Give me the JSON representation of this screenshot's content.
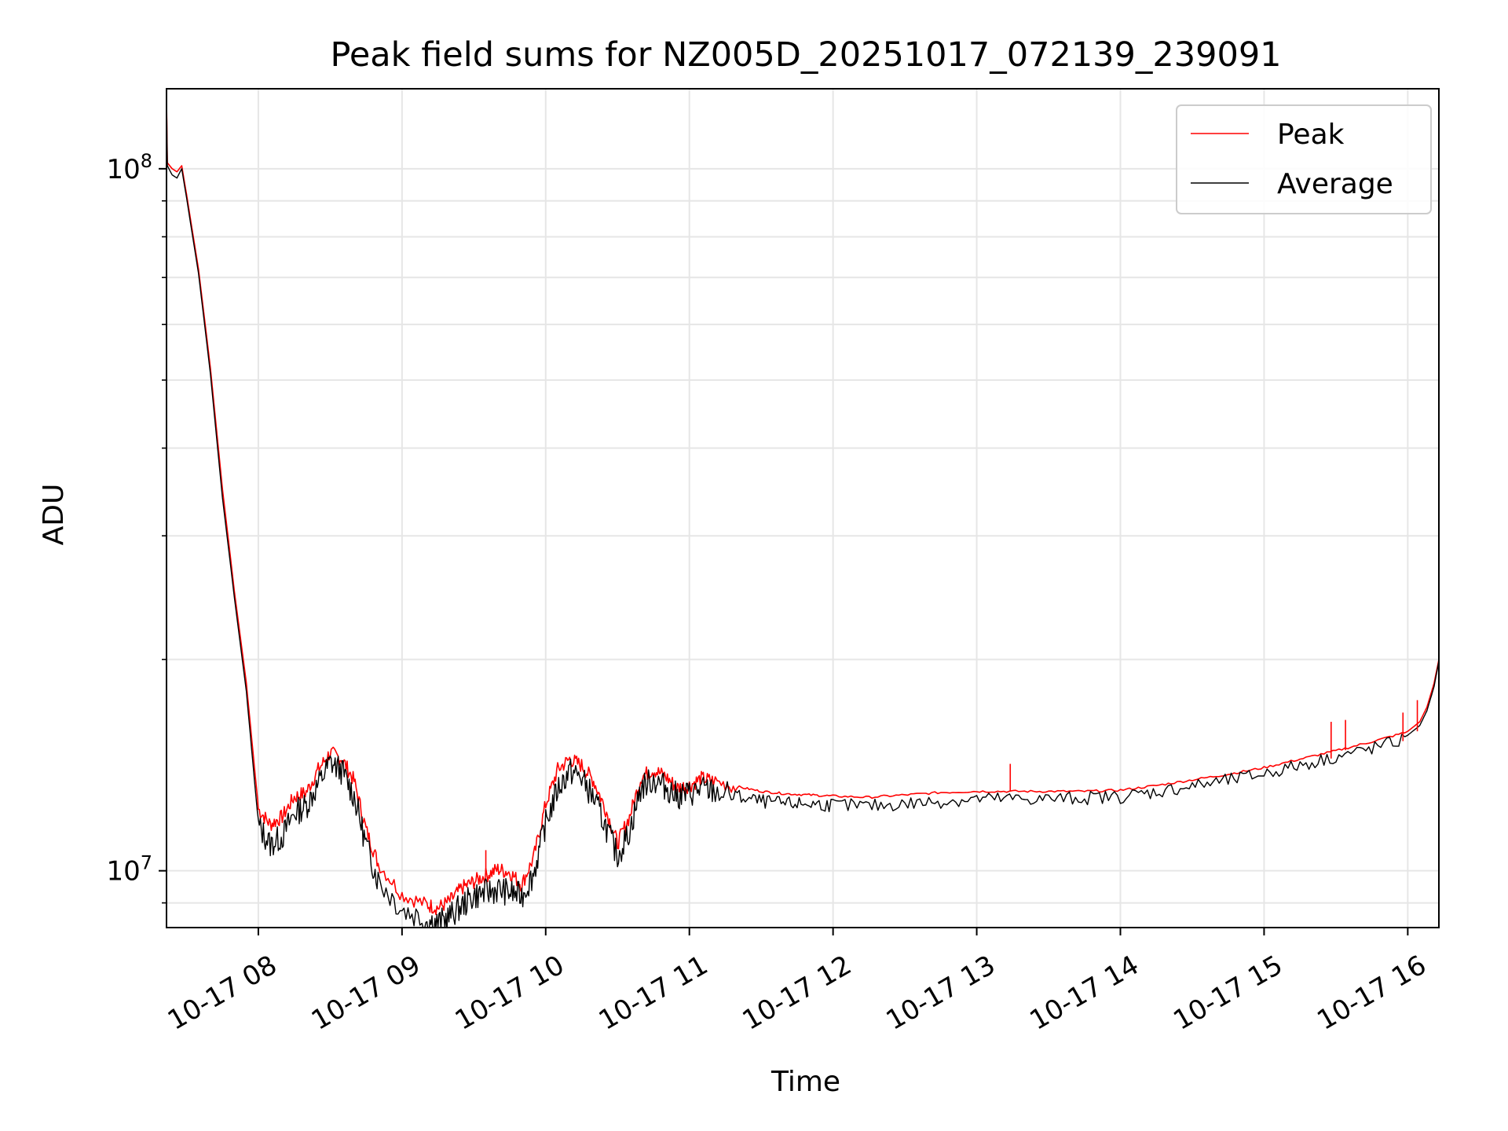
{
  "chart_data": {
    "type": "line",
    "title": "Peak field sums for NZ005D_20251017_072139_239091",
    "xlabel": "Time",
    "ylabel": "ADU",
    "y_scale": "log",
    "ylim": [
      8300000,
      130000000
    ],
    "xlim": [
      "2025-10-17 07:21:39",
      "2025-10-17 16:13:00"
    ],
    "grid": true,
    "legend_position": "top-right",
    "x_ticks": [
      {
        "value": "2025-10-17 08:00",
        "label": "10-17 08"
      },
      {
        "value": "2025-10-17 09:00",
        "label": "10-17 09"
      },
      {
        "value": "2025-10-17 10:00",
        "label": "10-17 10"
      },
      {
        "value": "2025-10-17 11:00",
        "label": "10-17 11"
      },
      {
        "value": "2025-10-17 12:00",
        "label": "10-17 12"
      },
      {
        "value": "2025-10-17 13:00",
        "label": "10-17 13"
      },
      {
        "value": "2025-10-17 14:00",
        "label": "10-17 14"
      },
      {
        "value": "2025-10-17 15:00",
        "label": "10-17 15"
      },
      {
        "value": "2025-10-17 16:00",
        "label": "10-17 16"
      }
    ],
    "y_major_ticks": [
      {
        "value": 10000000,
        "base": "10",
        "exp": "7"
      },
      {
        "value": 100000000,
        "base": "10",
        "exp": "8"
      }
    ],
    "y_minor_ticks": [
      9000000,
      20000000,
      30000000,
      40000000,
      50000000,
      60000000,
      70000000,
      80000000,
      90000000
    ],
    "x": [
      "2025-10-17 07:21:39",
      "2025-10-17 07:22",
      "2025-10-17 07:24",
      "2025-10-17 07:26",
      "2025-10-17 07:28",
      "2025-10-17 07:30",
      "2025-10-17 07:35",
      "2025-10-17 07:40",
      "2025-10-17 07:45",
      "2025-10-17 07:50",
      "2025-10-17 07:55",
      "2025-10-17 08:00",
      "2025-10-17 08:05",
      "2025-10-17 08:10",
      "2025-10-17 08:15",
      "2025-10-17 08:20",
      "2025-10-17 08:25",
      "2025-10-17 08:30",
      "2025-10-17 08:35",
      "2025-10-17 08:40",
      "2025-10-17 08:45",
      "2025-10-17 08:50",
      "2025-10-17 09:00",
      "2025-10-17 09:10",
      "2025-10-17 09:15",
      "2025-10-17 09:20",
      "2025-10-17 09:25",
      "2025-10-17 09:30",
      "2025-10-17 09:35",
      "2025-10-17 09:40",
      "2025-10-17 09:45",
      "2025-10-17 09:50",
      "2025-10-17 09:55",
      "2025-10-17 10:00",
      "2025-10-17 10:05",
      "2025-10-17 10:10",
      "2025-10-17 10:15",
      "2025-10-17 10:20",
      "2025-10-17 10:25",
      "2025-10-17 10:30",
      "2025-10-17 10:35",
      "2025-10-17 10:40",
      "2025-10-17 10:45",
      "2025-10-17 10:50",
      "2025-10-17 10:55",
      "2025-10-17 11:00",
      "2025-10-17 11:05",
      "2025-10-17 11:10",
      "2025-10-17 11:20",
      "2025-10-17 11:30",
      "2025-10-17 11:40",
      "2025-10-17 11:50",
      "2025-10-17 12:00",
      "2025-10-17 12:15",
      "2025-10-17 12:30",
      "2025-10-17 12:45",
      "2025-10-17 13:00",
      "2025-10-17 13:15",
      "2025-10-17 13:30",
      "2025-10-17 13:45",
      "2025-10-17 14:00",
      "2025-10-17 14:15",
      "2025-10-17 14:30",
      "2025-10-17 14:45",
      "2025-10-17 15:00",
      "2025-10-17 15:15",
      "2025-10-17 15:30",
      "2025-10-17 15:45",
      "2025-10-17 16:00",
      "2025-10-17 16:05",
      "2025-10-17 16:08",
      "2025-10-17 16:11",
      "2025-10-17 16:13"
    ],
    "series": [
      {
        "name": "Peak",
        "color": "#ff0000",
        "values": [
          125000000,
          102000000,
          100000000,
          99000000,
          101000000,
          92000000,
          72000000,
          52000000,
          35000000,
          25000000,
          18500000,
          12300000,
          11700000,
          12000000,
          12800000,
          13000000,
          14000000,
          14800000,
          14500000,
          13500000,
          11500000,
          10300000,
          9300000,
          9000000,
          8900000,
          9100000,
          9500000,
          9700000,
          9900000,
          10100000,
          10000000,
          9600000,
          10500000,
          12500000,
          14000000,
          14500000,
          14200000,
          13500000,
          12300000,
          11000000,
          12000000,
          13700000,
          14000000,
          13700000,
          13200000,
          13300000,
          13600000,
          13500000,
          13200000,
          13000000,
          12900000,
          12850000,
          12800000,
          12750000,
          12850000,
          12950000,
          13000000,
          13000000,
          13000000,
          13000000,
          13050000,
          13250000,
          13500000,
          13750000,
          14050000,
          14450000,
          14850000,
          15300000,
          15800000,
          16300000,
          17100000,
          18500000,
          20000000
        ]
      },
      {
        "name": "Average",
        "color": "#000000",
        "values": [
          125000000,
          101000000,
          98000000,
          97000000,
          100000000,
          91000000,
          71000000,
          51000000,
          34000000,
          24500000,
          18000000,
          11700000,
          11000000,
          11300000,
          12200000,
          12500000,
          13400000,
          14400000,
          14000000,
          12900000,
          11000000,
          9800000,
          8900000,
          8600000,
          8500000,
          8700000,
          9000000,
          9300000,
          9400000,
          9500000,
          9400000,
          9300000,
          10000000,
          11800000,
          13200000,
          14000000,
          13700000,
          12800000,
          11700000,
          10600000,
          11500000,
          13300000,
          13600000,
          13300000,
          12900000,
          13000000,
          13200000,
          13100000,
          12900000,
          12700000,
          12600000,
          12600000,
          12550000,
          12500000,
          12600000,
          12700000,
          12800000,
          12800000,
          12800000,
          12850000,
          12900000,
          13100000,
          13350000,
          13600000,
          13900000,
          14300000,
          14700000,
          15100000,
          15600000,
          16100000,
          16900000,
          18300000,
          19900000
        ]
      }
    ],
    "spikes": [
      {
        "series": "Peak",
        "x": "2025-10-17 09:35",
        "value": 10700000
      },
      {
        "series": "Peak",
        "x": "2025-10-17 13:14",
        "value": 14200000
      },
      {
        "series": "Peak",
        "x": "2025-10-17 15:28",
        "value": 16300000
      },
      {
        "series": "Peak",
        "x": "2025-10-17 15:34",
        "value": 16400000
      },
      {
        "series": "Peak",
        "x": "2025-10-17 15:58",
        "value": 16800000
      },
      {
        "series": "Peak",
        "x": "2025-10-17 16:04",
        "value": 17500000
      }
    ]
  }
}
